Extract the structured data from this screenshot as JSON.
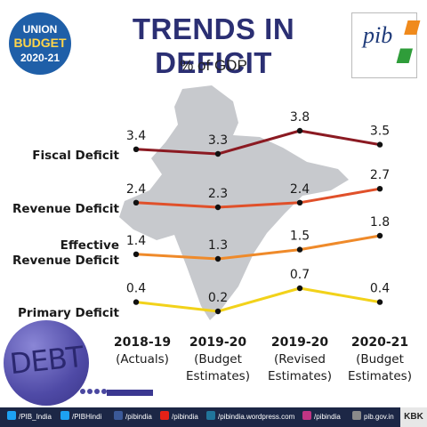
{
  "header": {
    "badge_lines": [
      "UNION",
      "BUDGET",
      "2020-21"
    ],
    "title": "TRENDS IN DEFICIT",
    "subtitle": "% of GDP",
    "logo_text": "pib"
  },
  "illustration": {
    "debt_text": "DEBT"
  },
  "footer": {
    "handles": [
      "/PIB_India",
      "/PIBHindi",
      "/pibindia",
      "/pibindia",
      "/pibindia.wordpress.com",
      "/pibindia",
      "pib.gov.in"
    ],
    "kbk": "KBK"
  },
  "colors": {
    "title": "#2b2f73",
    "fiscal": "#8b1a22",
    "revenue": "#e0502a",
    "effective": "#ef8a2a",
    "primary": "#f2d21a",
    "map": "#c7c9cd",
    "footer": "#1c2746"
  },
  "chart_data": {
    "type": "line",
    "title": "TRENDS IN DEFICIT",
    "subtitle": "% of GDP",
    "categories": [
      [
        "2018-19",
        "(Actuals)"
      ],
      [
        "2019-20",
        "(Budget",
        "Estimates)"
      ],
      [
        "2019-20",
        "(Revised",
        "Estimates)"
      ],
      [
        "2020-21",
        "(Budget",
        "Estimates)"
      ]
    ],
    "series": [
      {
        "name": "Fiscal Deficit",
        "label_lines": [
          "Fiscal Deficit"
        ],
        "values": [
          3.4,
          3.3,
          3.8,
          3.5
        ],
        "labels": [
          "3.4",
          "3.3",
          "3.8",
          "3.5"
        ],
        "color": "#8b1a22"
      },
      {
        "name": "Revenue Deficit",
        "label_lines": [
          "Revenue Deficit"
        ],
        "values": [
          2.4,
          2.3,
          2.4,
          2.7
        ],
        "labels": [
          "2.4",
          "2.3",
          "2.4",
          "2.7"
        ],
        "color": "#e0502a"
      },
      {
        "name": "Effective Revenue Deficit",
        "label_lines": [
          "Effective",
          "Revenue Deficit"
        ],
        "values": [
          1.4,
          1.3,
          1.5,
          1.8
        ],
        "labels": [
          "1.4",
          "1.3",
          "1.5",
          "1.8"
        ],
        "color": "#ef8a2a"
      },
      {
        "name": "Primary Deficit",
        "label_lines": [
          "Primary Deficit"
        ],
        "values": [
          0.4,
          0.2,
          0.7,
          0.4
        ],
        "labels": [
          "0.4",
          "0.2",
          "0.7",
          "0.4"
        ],
        "color": "#f2d21a"
      }
    ],
    "grid": false,
    "legend": "left"
  }
}
